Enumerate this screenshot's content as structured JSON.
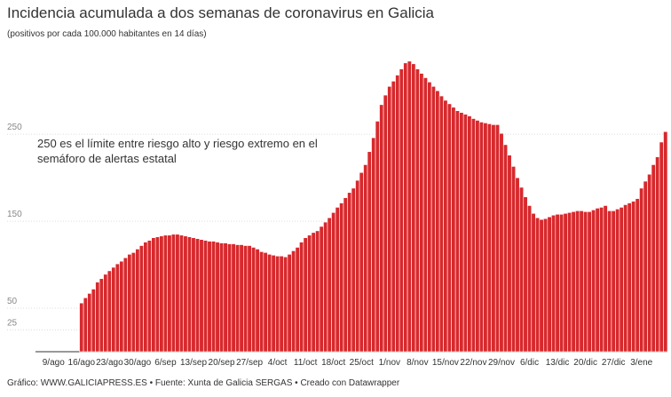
{
  "chart_data": {
    "type": "bar",
    "title": "Incidencia acumulada a dos semanas de coronavirus en Galicia",
    "subtitle": "(positivos por cada 100.000 habitantes en 14 días)",
    "annotation": [
      "250 es el límite entre riesgo alto y riesgo extremo en el",
      "semáforo de alertas estatal"
    ],
    "footer": "Gráfico: WWW.GALICIAPRESS.ES • Fuente: Xunta de Galicia SERGAS • Creado con Datawrapper",
    "color": "#d8282c",
    "ylim": [
      0,
      340
    ],
    "yticks": [
      25,
      50,
      150,
      250
    ],
    "grid": true,
    "categories": [
      null,
      null,
      null,
      null,
      "9/ago",
      null,
      null,
      null,
      null,
      null,
      null,
      "16/ago",
      null,
      null,
      null,
      null,
      null,
      null,
      "23/ago",
      null,
      null,
      null,
      null,
      null,
      null,
      "30/ago",
      null,
      null,
      null,
      null,
      null,
      null,
      "6/sep",
      null,
      null,
      null,
      null,
      null,
      null,
      "13/sep",
      null,
      null,
      null,
      null,
      null,
      null,
      "20/sep",
      null,
      null,
      null,
      null,
      null,
      null,
      "27/sep",
      null,
      null,
      null,
      null,
      null,
      null,
      "4/oct",
      null,
      null,
      null,
      null,
      null,
      null,
      "11/oct",
      null,
      null,
      null,
      null,
      null,
      null,
      "18/oct",
      null,
      null,
      null,
      null,
      null,
      null,
      "25/oct",
      null,
      null,
      null,
      null,
      null,
      null,
      "1/nov",
      null,
      null,
      null,
      null,
      null,
      null,
      "8/nov",
      null,
      null,
      null,
      null,
      null,
      null,
      "15/nov",
      null,
      null,
      null,
      null,
      null,
      null,
      "22/nov",
      null,
      null,
      null,
      null,
      null,
      null,
      "29/nov",
      null,
      null,
      null,
      null,
      null,
      null,
      "6/dic",
      null,
      null,
      null,
      null,
      null,
      null,
      "13/dic",
      null,
      null,
      null,
      null,
      null,
      null,
      "20/dic",
      null,
      null,
      null,
      null,
      null,
      null,
      "27/dic",
      null,
      null,
      null,
      null,
      null,
      null,
      "3/ene",
      null,
      null,
      null,
      null,
      null,
      null
    ],
    "values": [
      null,
      null,
      null,
      null,
      null,
      null,
      null,
      null,
      null,
      null,
      null,
      56,
      62,
      67,
      72,
      80,
      84,
      89,
      93,
      97,
      101,
      104,
      108,
      112,
      114,
      118,
      122,
      126,
      128,
      131,
      132,
      133,
      134,
      134,
      135,
      135,
      134,
      133,
      132,
      131,
      130,
      129,
      128,
      127,
      127,
      126,
      125,
      125,
      124,
      124,
      123,
      123,
      122,
      122,
      120,
      118,
      115,
      114,
      112,
      111,
      110,
      110,
      109,
      112,
      116,
      120,
      126,
      131,
      134,
      137,
      139,
      144,
      149,
      154,
      160,
      166,
      171,
      177,
      183,
      188,
      197,
      206,
      215,
      230,
      246,
      265,
      284,
      295,
      305,
      311,
      318,
      325,
      332,
      334,
      331,
      325,
      320,
      315,
      310,
      305,
      300,
      294,
      289,
      285,
      281,
      277,
      275,
      273,
      271,
      268,
      266,
      264,
      263,
      262,
      261,
      261,
      251,
      238,
      226,
      213,
      200,
      189,
      178,
      168,
      159,
      154,
      152,
      153,
      155,
      157,
      158,
      158,
      159,
      160,
      161,
      162,
      162,
      161,
      161,
      163,
      165,
      166,
      168,
      162,
      162,
      164,
      166,
      169,
      171,
      173,
      176,
      188,
      196,
      204,
      215,
      224,
      241,
      253
    ]
  }
}
